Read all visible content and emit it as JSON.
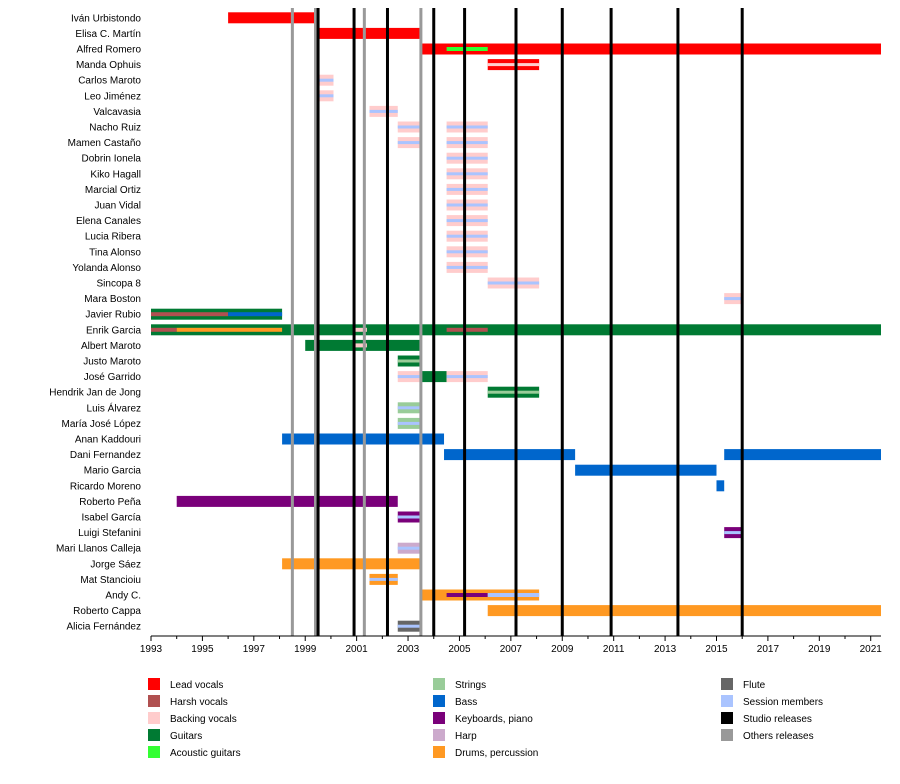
{
  "chart_data": {
    "type": "timeline",
    "x_range": [
      1993,
      2021.4
    ],
    "x_ticks": [
      "1993",
      "1995",
      "1997",
      "1999",
      "2001",
      "2003",
      "2005",
      "2007",
      "2009",
      "2011",
      "2013",
      "2015",
      "2017",
      "2019",
      "2021"
    ],
    "colors": {
      "lead_vocals": "#ff0000",
      "harsh_vocals": "#b05050",
      "backing_vocals": "#ffcccc",
      "guitars": "#007a33",
      "acoustic_guitars": "#33ff33",
      "strings": "#99cc99",
      "bass": "#0066cc",
      "keyboards": "#7a007a",
      "harp": "#ccaacc",
      "drums": "#ff9922",
      "flute": "#666666",
      "session": "#aac4ff",
      "studio": "#000000",
      "others": "#999999"
    },
    "studio_releases": [
      1999.5,
      2000.9,
      2002.2,
      2004.0,
      2005.2,
      2007.2,
      2009.0,
      2010.9,
      2013.5,
      2016.0
    ],
    "other_releases": [
      1998.5,
      1999.4,
      2001.3,
      2003.5
    ],
    "legend": [
      {
        "label": "Lead vocals",
        "color": "lead_vocals"
      },
      {
        "label": "Harsh vocals",
        "color": "harsh_vocals"
      },
      {
        "label": "Backing vocals",
        "color": "backing_vocals"
      },
      {
        "label": "Guitars",
        "color": "guitars"
      },
      {
        "label": "Acoustic guitars",
        "color": "acoustic_guitars"
      },
      {
        "label": "Strings",
        "color": "strings"
      },
      {
        "label": "Bass",
        "color": "bass"
      },
      {
        "label": "Keyboards, piano",
        "color": "keyboards"
      },
      {
        "label": "Harp",
        "color": "harp"
      },
      {
        "label": "Drums, percussion",
        "color": "drums"
      },
      {
        "label": "Flute",
        "color": "flute"
      },
      {
        "label": "Session members",
        "color": "session"
      },
      {
        "label": "Studio releases",
        "color": "studio"
      },
      {
        "label": "Others releases",
        "color": "others"
      }
    ],
    "members": [
      {
        "name": "Iván Urbistondo",
        "bars": [
          {
            "from": 1996.0,
            "to": 1999.4,
            "color": "lead_vocals"
          }
        ]
      },
      {
        "name": "Elisa C. Martín",
        "bars": [
          {
            "from": 1999.4,
            "to": 2003.5,
            "color": "lead_vocals"
          }
        ]
      },
      {
        "name": "Alfred Romero",
        "bars": [
          {
            "from": 2003.5,
            "to": 2021.4,
            "color": "lead_vocals"
          },
          {
            "from": 2004.5,
            "to": 2006.1,
            "color": "acoustic_guitars",
            "thin": true
          }
        ]
      },
      {
        "name": "Manda Ophuis",
        "bars": [
          {
            "from": 2006.1,
            "to": 2008.1,
            "color": "lead_vocals",
            "stripe": "backing_vocals"
          }
        ]
      },
      {
        "name": "Carlos Maroto",
        "bars": [
          {
            "from": 1999.5,
            "to": 2000.1,
            "color": "backing_vocals",
            "stripe": "session"
          }
        ]
      },
      {
        "name": "Leo Jiménez",
        "bars": [
          {
            "from": 1999.5,
            "to": 2000.1,
            "color": "backing_vocals",
            "stripe": "session"
          }
        ]
      },
      {
        "name": "Valcavasia",
        "bars": [
          {
            "from": 2001.5,
            "to": 2002.6,
            "color": "backing_vocals",
            "stripe": "session"
          }
        ]
      },
      {
        "name": "Nacho Ruiz",
        "bars": [
          {
            "from": 2002.6,
            "to": 2003.5,
            "color": "backing_vocals",
            "stripe": "session"
          },
          {
            "from": 2004.5,
            "to": 2006.1,
            "color": "backing_vocals",
            "stripe": "session"
          }
        ]
      },
      {
        "name": "Mamen Castaño",
        "bars": [
          {
            "from": 2002.6,
            "to": 2003.5,
            "color": "backing_vocals",
            "stripe": "session"
          },
          {
            "from": 2004.5,
            "to": 2006.1,
            "color": "backing_vocals",
            "stripe": "session"
          }
        ]
      },
      {
        "name": "Dobrin Ionela",
        "bars": [
          {
            "from": 2004.5,
            "to": 2006.1,
            "color": "backing_vocals",
            "stripe": "session"
          }
        ]
      },
      {
        "name": "Kiko Hagall",
        "bars": [
          {
            "from": 2004.5,
            "to": 2006.1,
            "color": "backing_vocals",
            "stripe": "session"
          }
        ]
      },
      {
        "name": "Marcial Ortiz",
        "bars": [
          {
            "from": 2004.5,
            "to": 2006.1,
            "color": "backing_vocals",
            "stripe": "session"
          }
        ]
      },
      {
        "name": "Juan Vidal",
        "bars": [
          {
            "from": 2004.5,
            "to": 2006.1,
            "color": "backing_vocals",
            "stripe": "session"
          }
        ]
      },
      {
        "name": "Elena Canales",
        "bars": [
          {
            "from": 2004.5,
            "to": 2006.1,
            "color": "backing_vocals",
            "stripe": "session"
          }
        ]
      },
      {
        "name": "Lucia Ribera",
        "bars": [
          {
            "from": 2004.5,
            "to": 2006.1,
            "color": "backing_vocals",
            "stripe": "session"
          }
        ]
      },
      {
        "name": "Tina Alonso",
        "bars": [
          {
            "from": 2004.5,
            "to": 2006.1,
            "color": "backing_vocals",
            "stripe": "session"
          }
        ]
      },
      {
        "name": "Yolanda Alonso",
        "bars": [
          {
            "from": 2004.5,
            "to": 2006.1,
            "color": "backing_vocals",
            "stripe": "session"
          }
        ]
      },
      {
        "name": "Sincopa 8",
        "bars": [
          {
            "from": 2006.1,
            "to": 2008.1,
            "color": "backing_vocals",
            "stripe": "session"
          }
        ]
      },
      {
        "name": "Mara Boston",
        "bars": [
          {
            "from": 2015.3,
            "to": 2016.0,
            "color": "backing_vocals",
            "stripe": "session"
          }
        ]
      },
      {
        "name": "Javier Rubio",
        "bars": [
          {
            "from": 1993.0,
            "to": 1998.1,
            "color": "guitars"
          },
          {
            "from": 1993.0,
            "to": 1996.0,
            "color": "harsh_vocals",
            "thin": true
          },
          {
            "from": 1996.0,
            "to": 1998.1,
            "color": "bass",
            "thin": true
          }
        ]
      },
      {
        "name": "Enrik Garcia",
        "bars": [
          {
            "from": 1993.0,
            "to": 2021.4,
            "color": "guitars"
          },
          {
            "from": 1993.0,
            "to": 1994.0,
            "color": "harsh_vocals",
            "thin": true
          },
          {
            "from": 1994.0,
            "to": 1998.1,
            "color": "drums",
            "thin": true
          },
          {
            "from": 2000.9,
            "to": 2001.4,
            "color": "backing_vocals",
            "thin": true
          },
          {
            "from": 2004.5,
            "to": 2006.1,
            "color": "harsh_vocals",
            "thin": true
          }
        ]
      },
      {
        "name": "Albert Maroto",
        "bars": [
          {
            "from": 1999.0,
            "to": 2003.5,
            "color": "guitars"
          },
          {
            "from": 2000.9,
            "to": 2001.4,
            "color": "backing_vocals",
            "thin": true
          }
        ]
      },
      {
        "name": "Justo Maroto",
        "bars": [
          {
            "from": 2002.6,
            "to": 2003.5,
            "color": "guitars",
            "stripe": "strings"
          }
        ]
      },
      {
        "name": "José Garrido",
        "bars": [
          {
            "from": 2002.6,
            "to": 2003.5,
            "color": "backing_vocals",
            "stripe": "session"
          },
          {
            "from": 2003.5,
            "to": 2004.5,
            "color": "guitars"
          },
          {
            "from": 2004.5,
            "to": 2006.1,
            "color": "backing_vocals",
            "stripe": "session"
          }
        ]
      },
      {
        "name": "Hendrik Jan de Jong",
        "bars": [
          {
            "from": 2006.1,
            "to": 2008.1,
            "color": "guitars",
            "stripe": "strings"
          }
        ]
      },
      {
        "name": "Luis Álvarez",
        "bars": [
          {
            "from": 2002.6,
            "to": 2003.5,
            "color": "strings",
            "stripe": "session"
          }
        ]
      },
      {
        "name": "María José López",
        "bars": [
          {
            "from": 2002.6,
            "to": 2003.5,
            "color": "strings",
            "stripe": "session"
          }
        ]
      },
      {
        "name": "Anan Kaddouri",
        "bars": [
          {
            "from": 1998.1,
            "to": 2004.4,
            "color": "bass"
          }
        ]
      },
      {
        "name": "Dani Fernandez",
        "bars": [
          {
            "from": 2004.4,
            "to": 2009.5,
            "color": "bass"
          },
          {
            "from": 2015.3,
            "to": 2021.4,
            "color": "bass"
          }
        ]
      },
      {
        "name": "Mario Garcia",
        "bars": [
          {
            "from": 2009.5,
            "to": 2015.0,
            "color": "bass"
          }
        ]
      },
      {
        "name": "Ricardo Moreno",
        "bars": [
          {
            "from": 2015.0,
            "to": 2015.3,
            "color": "bass"
          }
        ]
      },
      {
        "name": "Roberto Peña",
        "bars": [
          {
            "from": 1994.0,
            "to": 2002.6,
            "color": "keyboards"
          }
        ]
      },
      {
        "name": "Isabel García",
        "bars": [
          {
            "from": 2002.6,
            "to": 2003.5,
            "color": "keyboards",
            "stripe": "session"
          }
        ]
      },
      {
        "name": "Luigi Stefanini",
        "bars": [
          {
            "from": 2015.3,
            "to": 2016.0,
            "color": "keyboards",
            "stripe": "session"
          }
        ]
      },
      {
        "name": "Mari Llanos Calleja",
        "bars": [
          {
            "from": 2002.6,
            "to": 2003.5,
            "color": "harp",
            "stripe": "session"
          }
        ]
      },
      {
        "name": "Jorge Sáez",
        "bars": [
          {
            "from": 1998.1,
            "to": 2003.5,
            "color": "drums"
          }
        ]
      },
      {
        "name": "Mat Stancioiu",
        "bars": [
          {
            "from": 2001.5,
            "to": 2002.6,
            "color": "drums",
            "stripe": "session"
          }
        ]
      },
      {
        "name": "Andy C.",
        "bars": [
          {
            "from": 2003.5,
            "to": 2008.1,
            "color": "drums"
          },
          {
            "from": 2004.5,
            "to": 2006.1,
            "color": "keyboards",
            "thin": true
          },
          {
            "from": 2006.1,
            "to": 2008.1,
            "color": "session",
            "thin": true
          }
        ]
      },
      {
        "name": "Roberto Cappa",
        "bars": [
          {
            "from": 2006.1,
            "to": 2021.4,
            "color": "drums"
          }
        ]
      },
      {
        "name": "Alicia Fernández",
        "bars": [
          {
            "from": 2002.6,
            "to": 2003.5,
            "color": "flute",
            "stripe": "session"
          }
        ]
      }
    ]
  }
}
